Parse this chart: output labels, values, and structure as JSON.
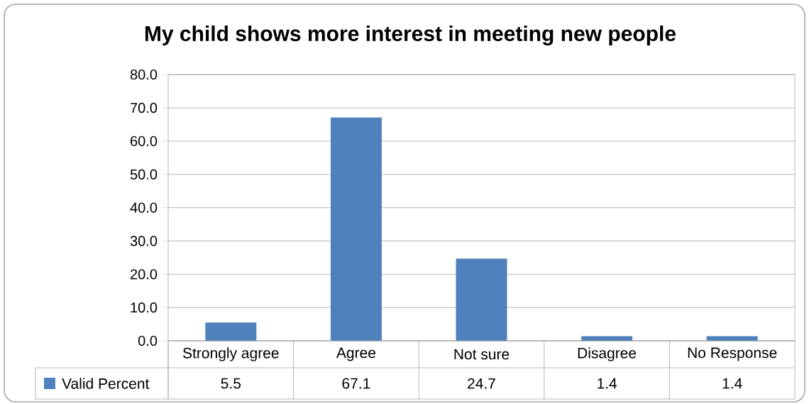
{
  "chart_data": {
    "type": "bar",
    "title": "My child shows more interest in meeting new people",
    "categories": [
      "Strongly agree",
      "Agree",
      "Not sure",
      "Disagree",
      "No Response"
    ],
    "series": [
      {
        "name": "Valid Percent",
        "color": "#4f81bd",
        "values": [
          5.5,
          67.1,
          24.7,
          1.4,
          1.4
        ]
      }
    ],
    "ylim": [
      0,
      80
    ],
    "yticks": [
      {
        "value": 0,
        "label": "0.0"
      },
      {
        "value": 10,
        "label": "10.0"
      },
      {
        "value": 20,
        "label": "20.0"
      },
      {
        "value": 30,
        "label": "30.0"
      },
      {
        "value": 40,
        "label": "40.0"
      },
      {
        "value": 50,
        "label": "50.0"
      },
      {
        "value": 60,
        "label": "60.0"
      },
      {
        "value": 70,
        "label": "70.0"
      },
      {
        "value": 80,
        "label": "80.0"
      }
    ],
    "grid": "y",
    "legend": "bottom",
    "data_labels": true
  }
}
